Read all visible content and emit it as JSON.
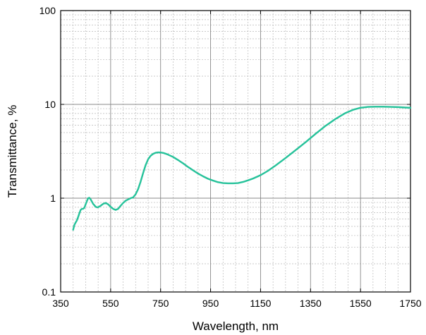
{
  "chart_data": {
    "type": "line",
    "title": "",
    "xlabel": "Wavelength, nm",
    "ylabel": "Transmittance, %",
    "xlim": [
      350,
      1750
    ],
    "ylim": [
      0.1,
      100
    ],
    "yscale": "log",
    "grid": true,
    "minor_grid": true,
    "xticks": [
      350,
      550,
      750,
      950,
      1150,
      1350,
      1550,
      1750
    ],
    "xtick_labels": [
      "350",
      "550",
      "750",
      "950",
      "1150",
      "1350",
      "1550",
      "1750"
    ],
    "yticks": [
      0.1,
      1,
      10,
      100
    ],
    "ytick_labels": [
      "0.1",
      "1",
      "10",
      "100"
    ],
    "series": [
      {
        "color": "#26c29a",
        "x": [
          400,
          405,
          410,
          415,
          420,
          425,
          430,
          435,
          440,
          445,
          450,
          455,
          460,
          465,
          470,
          475,
          480,
          485,
          490,
          495,
          500,
          510,
          520,
          530,
          540,
          550,
          560,
          570,
          580,
          590,
          600,
          610,
          620,
          630,
          640,
          650,
          660,
          670,
          680,
          690,
          700,
          710,
          720,
          730,
          740,
          750,
          760,
          770,
          780,
          790,
          800,
          820,
          840,
          860,
          880,
          900,
          920,
          940,
          960,
          980,
          1000,
          1020,
          1040,
          1060,
          1080,
          1100,
          1120,
          1150,
          1180,
          1210,
          1250,
          1290,
          1330,
          1370,
          1410,
          1450,
          1490,
          1520,
          1550,
          1580,
          1610,
          1640,
          1670,
          1700,
          1730,
          1750
        ],
        "y": [
          0.46,
          0.52,
          0.55,
          0.58,
          0.63,
          0.69,
          0.75,
          0.77,
          0.77,
          0.79,
          0.86,
          0.93,
          1.0,
          1.01,
          0.97,
          0.92,
          0.87,
          0.84,
          0.81,
          0.8,
          0.8,
          0.83,
          0.87,
          0.89,
          0.86,
          0.81,
          0.77,
          0.75,
          0.77,
          0.83,
          0.89,
          0.94,
          0.97,
          1.0,
          1.02,
          1.1,
          1.25,
          1.5,
          1.85,
          2.25,
          2.6,
          2.83,
          2.97,
          3.05,
          3.08,
          3.07,
          3.04,
          2.98,
          2.91,
          2.83,
          2.75,
          2.55,
          2.35,
          2.15,
          1.98,
          1.83,
          1.71,
          1.61,
          1.54,
          1.48,
          1.45,
          1.44,
          1.44,
          1.45,
          1.49,
          1.55,
          1.62,
          1.76,
          1.96,
          2.23,
          2.68,
          3.25,
          3.95,
          4.85,
          5.9,
          7.0,
          8.1,
          8.75,
          9.2,
          9.4,
          9.45,
          9.45,
          9.4,
          9.35,
          9.25,
          9.2
        ]
      }
    ]
  }
}
